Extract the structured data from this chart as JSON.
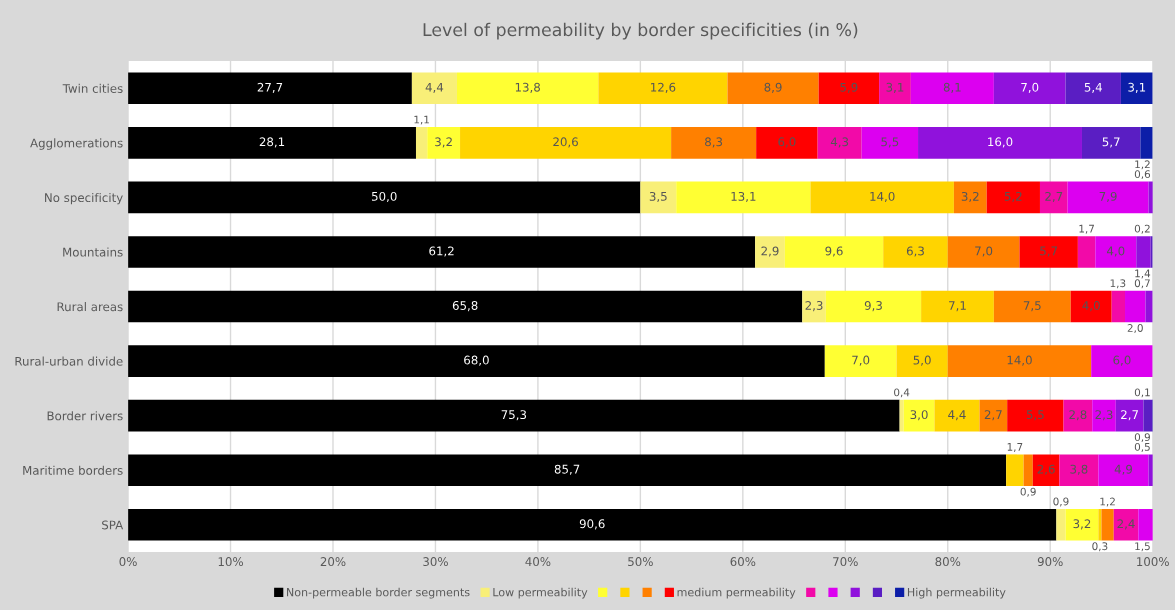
{
  "chart_data": {
    "type": "bar",
    "title": "Level of permeability by border specificities (in %)",
    "orientation": "horizontal",
    "stacked": true,
    "categories": [
      "Twin cities",
      "Agglomerations",
      "No specificity",
      "Mountains",
      "Rural areas",
      "Rural-urban divide",
      "Border rivers",
      "Maritime borders",
      "SPA"
    ],
    "xlim": [
      0,
      100
    ],
    "xticks": [
      {
        "value": 0,
        "label": "0%"
      },
      {
        "value": 10,
        "label": "10%"
      },
      {
        "value": 20,
        "label": "20%"
      },
      {
        "value": 30,
        "label": "30%"
      },
      {
        "value": 40,
        "label": "40%"
      },
      {
        "value": 50,
        "label": "50%"
      },
      {
        "value": 60,
        "label": "60%"
      },
      {
        "value": 70,
        "label": "70%"
      },
      {
        "value": 80,
        "label": "80%"
      },
      {
        "value": 90,
        "label": "90%"
      },
      {
        "value": 100,
        "label": "100%"
      }
    ],
    "grid": "x",
    "legend": "bottom",
    "series": [
      {
        "name": "Non-permeable border segments",
        "color": "#000000",
        "values": [
          27.7,
          28.1,
          50.0,
          61.2,
          65.8,
          68.0,
          75.3,
          85.7,
          90.6
        ],
        "value_labels": [
          "27,7",
          "28,1",
          "50,0",
          "61,2",
          "65,8",
          "68,0",
          "75,3",
          "85,7",
          "90,6"
        ]
      },
      {
        "name": "Low permeability",
        "color": "#f8ef78",
        "values": [
          4.4,
          1.1,
          3.5,
          2.9,
          2.3,
          null,
          0.4,
          null,
          0.9
        ],
        "value_labels": [
          "4,4",
          "1,1",
          "3,5",
          "2,9",
          "2,3",
          null,
          "0,4",
          null,
          "0,9"
        ]
      },
      {
        "color": "#ffff33",
        "values": [
          13.8,
          3.2,
          13.1,
          9.6,
          9.3,
          7.0,
          3.0,
          null,
          3.2
        ],
        "value_labels": [
          "13,8",
          "3,2",
          "13,1",
          "9,6",
          "9,3",
          "7,0",
          "3,0",
          null,
          "3,2"
        ]
      },
      {
        "color": "#ffd400",
        "values": [
          12.6,
          20.6,
          14.0,
          6.3,
          7.1,
          5.0,
          4.4,
          1.7,
          0.3
        ],
        "value_labels": [
          "12,6",
          "20,6",
          "14,0",
          "6,3",
          "7,1",
          "5,0",
          "4,4",
          "1,7",
          "0,3"
        ]
      },
      {
        "color": "#ff8000",
        "values": [
          8.9,
          8.3,
          3.2,
          7.0,
          7.5,
          14.0,
          2.7,
          0.9,
          1.2
        ],
        "value_labels": [
          "8,9",
          "8,3",
          "3,2",
          "7,0",
          "7,5",
          "14,0",
          "2,7",
          "0,9",
          "1,2"
        ]
      },
      {
        "name": "medium permeability",
        "color": "#ff0000",
        "values": [
          5.9,
          6.0,
          5.2,
          5.7,
          4.0,
          null,
          5.5,
          2.6,
          null
        ],
        "value_labels": [
          "5,9",
          "6,0",
          "5,2",
          "5,7",
          "4,0",
          null,
          "5,5",
          "2,6",
          null
        ]
      },
      {
        "color": "#f20aa8",
        "values": [
          3.1,
          4.3,
          2.7,
          1.7,
          1.3,
          null,
          2.8,
          3.8,
          2.4
        ],
        "value_labels": [
          "3,1",
          "4,3",
          "2,7",
          "1,7",
          "1,3",
          null,
          "2,8",
          "3,8",
          "2,4"
        ]
      },
      {
        "color": "#dc00f0",
        "values": [
          8.1,
          5.5,
          7.9,
          4.0,
          2.0,
          6.0,
          2.3,
          4.9,
          1.5
        ],
        "value_labels": [
          "8,1",
          "5,5",
          "7,9",
          "4,0",
          "2,0",
          "6,0",
          "2,3",
          "4,9",
          "1,5"
        ]
      },
      {
        "color": "#9012dc",
        "values": [
          7.0,
          16.0,
          0.6,
          1.4,
          0.7,
          null,
          2.7,
          0.5,
          null
        ],
        "value_labels": [
          "7,0",
          "16,0",
          "0,6",
          "1,4",
          "0,7",
          null,
          "2,7",
          "0,5",
          null
        ]
      },
      {
        "color": "#5a1ec3",
        "values": [
          5.4,
          5.7,
          null,
          0.2,
          null,
          null,
          0.9,
          null,
          null
        ],
        "value_labels": [
          "5,4",
          "5,7",
          null,
          "0,2",
          null,
          null,
          "0,9",
          null,
          null
        ]
      },
      {
        "name": "High permeability",
        "color": "#0c1ea8",
        "values": [
          3.1,
          1.2,
          null,
          null,
          null,
          null,
          0.1,
          null,
          null
        ],
        "value_labels": [
          "3,1",
          "1,2",
          null,
          null,
          null,
          null,
          "0,1",
          null,
          null
        ]
      }
    ]
  }
}
